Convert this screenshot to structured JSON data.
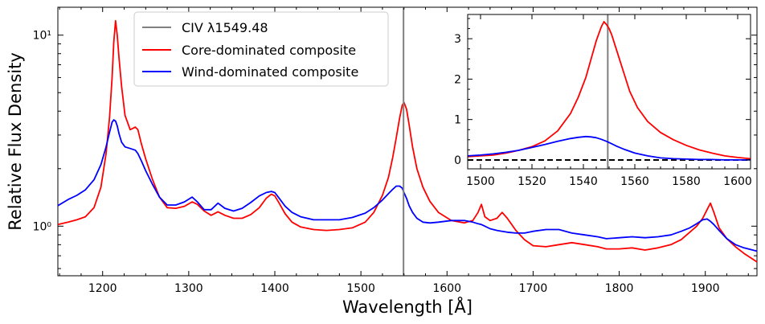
{
  "chart_data": [
    {
      "type": "line",
      "xlabel": "Wavelength [Å]",
      "ylabel": "Relative Flux Density",
      "xlim": [
        1148,
        1960
      ],
      "ylim": [
        0.55,
        14.0
      ],
      "yscale": "log",
      "x_ticks": [
        1200,
        1300,
        1400,
        1500,
        1600,
        1700,
        1800,
        1900
      ],
      "x_tick_labels": [
        "1200",
        "1300",
        "1400",
        "1500",
        "1600",
        "1700",
        "1800",
        "1900"
      ],
      "y_ticks": [
        1,
        10
      ],
      "y_tick_labels": [
        "10⁰",
        "10¹"
      ],
      "grid": false,
      "legend_position": "top-center",
      "vline": {
        "x": 1549.48,
        "label": "CIV λ1549.48",
        "color": "#808080"
      },
      "series": [
        {
          "name": "Core-dominated composite",
          "color": "#ff0000",
          "x": [
            1148,
            1160,
            1170,
            1180,
            1190,
            1198,
            1204,
            1208,
            1211,
            1213,
            1215,
            1217,
            1219,
            1222,
            1226,
            1232,
            1238,
            1241,
            1245,
            1250,
            1258,
            1266,
            1275,
            1285,
            1295,
            1304,
            1310,
            1318,
            1326,
            1334,
            1342,
            1352,
            1362,
            1372,
            1382,
            1390,
            1396,
            1400,
            1405,
            1412,
            1420,
            1430,
            1445,
            1460,
            1475,
            1490,
            1505,
            1515,
            1525,
            1532,
            1537,
            1541,
            1545,
            1548,
            1550,
            1553,
            1556,
            1560,
            1565,
            1572,
            1580,
            1590,
            1605,
            1620,
            1630,
            1636,
            1640,
            1644,
            1650,
            1658,
            1664,
            1670,
            1680,
            1690,
            1700,
            1715,
            1730,
            1745,
            1760,
            1775,
            1785,
            1800,
            1815,
            1830,
            1845,
            1860,
            1872,
            1882,
            1890,
            1897,
            1902,
            1906,
            1910,
            1916,
            1925,
            1935,
            1945,
            1960
          ],
          "y": [
            1.02,
            1.05,
            1.08,
            1.12,
            1.25,
            1.6,
            2.4,
            3.7,
            6.0,
            9.2,
            11.9,
            10.0,
            7.6,
            5.4,
            3.8,
            3.2,
            3.3,
            3.2,
            2.7,
            2.25,
            1.75,
            1.42,
            1.25,
            1.24,
            1.27,
            1.34,
            1.3,
            1.2,
            1.14,
            1.19,
            1.14,
            1.1,
            1.1,
            1.15,
            1.25,
            1.4,
            1.47,
            1.44,
            1.32,
            1.16,
            1.05,
            0.99,
            0.96,
            0.95,
            0.96,
            0.98,
            1.05,
            1.18,
            1.45,
            1.8,
            2.3,
            2.9,
            3.7,
            4.3,
            4.45,
            4.1,
            3.4,
            2.6,
            2.0,
            1.6,
            1.35,
            1.18,
            1.07,
            1.04,
            1.07,
            1.18,
            1.3,
            1.12,
            1.07,
            1.1,
            1.18,
            1.1,
            0.95,
            0.85,
            0.79,
            0.78,
            0.8,
            0.82,
            0.8,
            0.78,
            0.76,
            0.76,
            0.77,
            0.75,
            0.77,
            0.8,
            0.85,
            0.93,
            1.0,
            1.1,
            1.22,
            1.32,
            1.18,
            0.98,
            0.86,
            0.78,
            0.72,
            0.65
          ]
        },
        {
          "name": "Wind-dominated composite",
          "color": "#0000ff",
          "x": [
            1148,
            1160,
            1170,
            1180,
            1190,
            1198,
            1204,
            1208,
            1211,
            1213,
            1215,
            1217,
            1219,
            1222,
            1226,
            1232,
            1238,
            1241,
            1245,
            1250,
            1258,
            1266,
            1275,
            1285,
            1295,
            1304,
            1310,
            1318,
            1326,
            1334,
            1342,
            1352,
            1362,
            1372,
            1382,
            1390,
            1396,
            1400,
            1405,
            1412,
            1420,
            1430,
            1445,
            1460,
            1475,
            1490,
            1505,
            1515,
            1525,
            1532,
            1537,
            1541,
            1545,
            1548,
            1550,
            1553,
            1556,
            1560,
            1565,
            1572,
            1580,
            1590,
            1605,
            1620,
            1630,
            1636,
            1640,
            1644,
            1650,
            1658,
            1664,
            1670,
            1680,
            1690,
            1700,
            1715,
            1730,
            1745,
            1760,
            1775,
            1785,
            1800,
            1815,
            1830,
            1845,
            1860,
            1872,
            1882,
            1890,
            1897,
            1902,
            1906,
            1910,
            1916,
            1925,
            1935,
            1945,
            1960
          ],
          "y": [
            1.28,
            1.38,
            1.45,
            1.55,
            1.75,
            2.1,
            2.6,
            3.1,
            3.5,
            3.6,
            3.55,
            3.35,
            3.05,
            2.75,
            2.6,
            2.55,
            2.5,
            2.4,
            2.2,
            1.95,
            1.65,
            1.42,
            1.29,
            1.29,
            1.34,
            1.42,
            1.34,
            1.22,
            1.22,
            1.32,
            1.24,
            1.2,
            1.24,
            1.33,
            1.44,
            1.5,
            1.52,
            1.5,
            1.4,
            1.27,
            1.18,
            1.12,
            1.08,
            1.08,
            1.08,
            1.11,
            1.17,
            1.25,
            1.37,
            1.48,
            1.56,
            1.62,
            1.62,
            1.58,
            1.5,
            1.4,
            1.28,
            1.18,
            1.1,
            1.05,
            1.04,
            1.05,
            1.07,
            1.07,
            1.05,
            1.03,
            1.02,
            1.0,
            0.97,
            0.95,
            0.94,
            0.93,
            0.92,
            0.92,
            0.94,
            0.96,
            0.96,
            0.92,
            0.9,
            0.88,
            0.86,
            0.87,
            0.88,
            0.87,
            0.88,
            0.9,
            0.94,
            0.98,
            1.03,
            1.08,
            1.09,
            1.06,
            1.02,
            0.95,
            0.86,
            0.8,
            0.77,
            0.74
          ]
        }
      ]
    },
    {
      "type": "line",
      "xlabel": "",
      "ylabel": "",
      "xlim": [
        1495,
        1605
      ],
      "ylim": [
        -0.22,
        3.6
      ],
      "yscale": "linear",
      "x_ticks": [
        1500,
        1520,
        1540,
        1560,
        1580,
        1600
      ],
      "x_tick_labels": [
        "1500",
        "1520",
        "1540",
        "1560",
        "1580",
        "1600"
      ],
      "y_ticks": [
        0,
        1,
        2,
        3
      ],
      "y_tick_labels": [
        "0",
        "1",
        "2",
        "3"
      ],
      "grid": false,
      "vline": {
        "x": 1549.48,
        "color": "#808080"
      },
      "hline": {
        "y": 0,
        "color": "#000000",
        "style": "dashed"
      },
      "series": [
        {
          "color": "#ff0000",
          "x": [
            1495,
            1500,
            1505,
            1510,
            1515,
            1520,
            1525,
            1530,
            1535,
            1538,
            1541,
            1543,
            1545,
            1547,
            1548,
            1549,
            1550,
            1551,
            1552,
            1554,
            1556,
            1558,
            1561,
            1565,
            1570,
            1575,
            1580,
            1585,
            1590,
            1595,
            1600,
            1605
          ],
          "y": [
            0.08,
            0.1,
            0.12,
            0.17,
            0.24,
            0.33,
            0.47,
            0.72,
            1.15,
            1.55,
            2.05,
            2.5,
            2.95,
            3.3,
            3.42,
            3.35,
            3.25,
            3.1,
            2.9,
            2.5,
            2.1,
            1.7,
            1.3,
            0.95,
            0.68,
            0.5,
            0.36,
            0.25,
            0.17,
            0.1,
            0.06,
            0.03
          ]
        },
        {
          "color": "#0000ff",
          "x": [
            1495,
            1500,
            1505,
            1510,
            1515,
            1520,
            1525,
            1530,
            1535,
            1538,
            1541,
            1543,
            1545,
            1547,
            1549,
            1551,
            1553,
            1556,
            1560,
            1565,
            1570,
            1575,
            1580,
            1585,
            1590,
            1595,
            1600,
            1605
          ],
          "y": [
            0.1,
            0.12,
            0.15,
            0.19,
            0.24,
            0.31,
            0.38,
            0.46,
            0.53,
            0.56,
            0.58,
            0.57,
            0.55,
            0.51,
            0.46,
            0.4,
            0.34,
            0.26,
            0.17,
            0.1,
            0.05,
            0.03,
            0.02,
            0.01,
            0.01,
            0.0,
            0.0,
            0.0
          ]
        }
      ]
    }
  ]
}
